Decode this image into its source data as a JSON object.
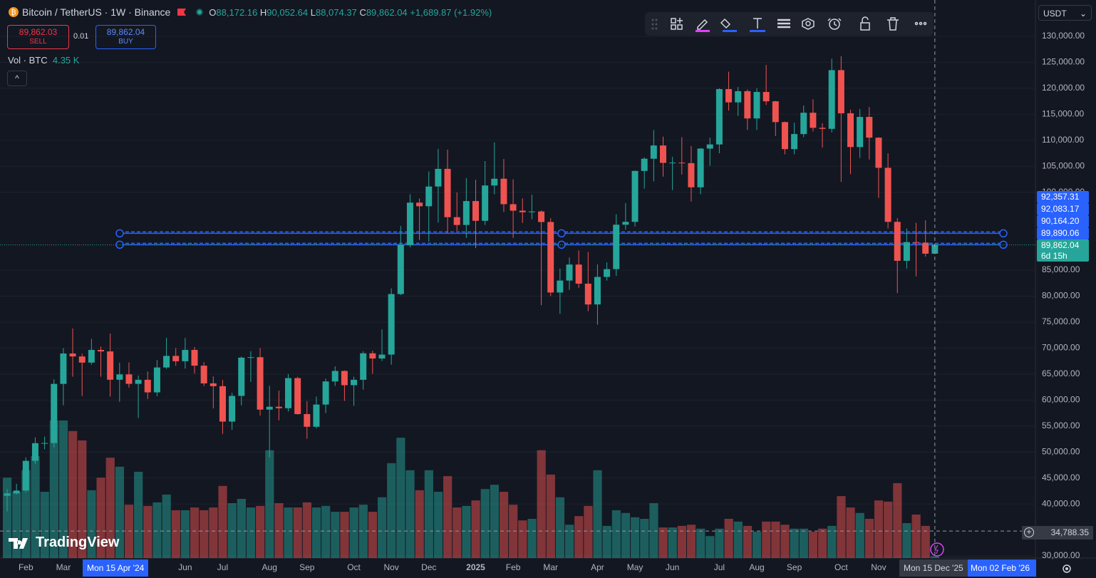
{
  "header": {
    "symbol": "Bitcoin / TetherUS · 1W · Binance",
    "o_label": "O",
    "o": "88,172.16",
    "h_label": "H",
    "h": "90,052.64",
    "l_label": "L",
    "l": "88,074.37",
    "c_label": "C",
    "c": "89,862.04",
    "change": "+1,689.87 (+1.92%)"
  },
  "trade": {
    "sell_price": "89,862.03",
    "sell": "SELL",
    "qty": "0.01",
    "buy_price": "89,862.04",
    "buy": "BUY"
  },
  "volume_legend": {
    "label": "Vol · BTC",
    "value": "4.35 K"
  },
  "currency": "USDT",
  "watermark": "TradingView",
  "chart_data": {
    "type": "candlestick",
    "x": [
      null,
      null,
      "Feb",
      null,
      null,
      null,
      "Mar",
      null,
      null,
      null,
      null,
      null,
      null,
      null,
      null,
      null,
      null,
      null,
      null,
      "Jun",
      null,
      null,
      null,
      "Jul",
      null,
      null,
      null,
      null,
      "Aug",
      null,
      null,
      null,
      "Sep",
      null,
      null,
      null,
      null,
      "Oct",
      null,
      null,
      null,
      "Nov",
      null,
      null,
      null,
      "Dec",
      null,
      null,
      null,
      null,
      "2025",
      null,
      null,
      null,
      "Feb",
      null,
      null,
      null,
      "Mar",
      null,
      null,
      null,
      null,
      "Apr",
      null,
      null,
      null,
      "May",
      null,
      null,
      null,
      "Jun",
      null,
      null,
      null,
      null,
      "Jul",
      null,
      null,
      null,
      "Aug",
      null,
      null,
      null,
      "Sep",
      null,
      null,
      null,
      null,
      "Oct",
      null,
      null,
      null,
      "Nov",
      null,
      null,
      null,
      null,
      null,
      null
    ],
    "open": [
      41580,
      42030,
      42580,
      48300,
      51700,
      51730,
      63110,
      68960,
      68390,
      67210,
      69650,
      69360,
      63910,
      64940,
      63120,
      63900,
      61480,
      66270,
      68500,
      67470,
      69650,
      66620,
      63210,
      62670,
      55850,
      60800,
      68160,
      68250,
      58160,
      58710,
      58430,
      64220,
      57300,
      54860,
      59130,
      63580,
      65600,
      62860,
      63900,
      69000,
      68000,
      68750,
      80400,
      89850,
      98000,
      97300,
      101100,
      104500,
      95200,
      93700,
      98300,
      94500,
      101300,
      102600,
      97700,
      96450,
      96150,
      96300,
      94270,
      80700,
      83000,
      86080,
      82400,
      78400,
      83700,
      85200,
      93750,
      94300,
      104100,
      106450,
      109000,
      105650,
      105700,
      105600,
      100950,
      108400,
      109200,
      119850,
      117300,
      119450,
      114200,
      119300,
      117500,
      113500,
      108300,
      111200,
      115300,
      112400,
      112200,
      123500,
      115200,
      108700,
      114500,
      110500,
      104700,
      94300,
      86800,
      90400,
      90300,
      88172.16
    ],
    "high": [
      42840,
      43880,
      48970,
      52820,
      52985,
      64000,
      70000,
      73780,
      68920,
      71770,
      70300,
      72800,
      67200,
      67240,
      64730,
      65500,
      67700,
      71980,
      70000,
      71950,
      70190,
      67300,
      64550,
      63860,
      61400,
      68380,
      69400,
      70000,
      62750,
      61800,
      65000,
      64480,
      59800,
      60670,
      64130,
      66500,
      65700,
      64500,
      69400,
      69500,
      73600,
      81500,
      93500,
      99600,
      98800,
      104000,
      108350,
      108200,
      99950,
      102700,
      102400,
      106000,
      109600,
      106400,
      102500,
      98800,
      99500,
      96500,
      95000,
      85300,
      87450,
      88800,
      88500,
      86100,
      86500,
      95750,
      97900,
      104150,
      106700,
      111980,
      110700,
      106800,
      110600,
      108900,
      108500,
      110500,
      120000,
      123200,
      120250,
      119800,
      120000,
      124500,
      117600,
      113600,
      113400,
      116700,
      117900,
      113300,
      125700,
      126200,
      115900,
      116000,
      116400,
      110600,
      107500,
      95000,
      93000,
      94100,
      94600,
      90052.64
    ],
    "low": [
      38555,
      41800,
      42260,
      47700,
      50520,
      50900,
      59000,
      64500,
      60770,
      66800,
      64490,
      60660,
      59680,
      62400,
      56550,
      60190,
      60760,
      66000,
      66600,
      66050,
      65100,
      62700,
      58400,
      53480,
      54260,
      59000,
      63500,
      57000,
      49000,
      56100,
      57800,
      57200,
      52550,
      54550,
      57500,
      62700,
      59830,
      58900,
      62000,
      65050,
      67500,
      66800,
      80200,
      89400,
      90800,
      90500,
      94150,
      92200,
      92550,
      91200,
      89250,
      93700,
      99600,
      96200,
      91200,
      94100,
      94800,
      78250,
      80000,
      76600,
      81200,
      81600,
      77100,
      74500,
      83000,
      83900,
      92800,
      93400,
      100700,
      102100,
      103000,
      100400,
      103400,
      98200,
      99600,
      105100,
      107500,
      115700,
      114700,
      112000,
      112000,
      116800,
      110800,
      107300,
      107300,
      110600,
      111700,
      108600,
      111500,
      102000,
      103500,
      106600,
      106300,
      98900,
      93000,
      80600,
      85300,
      83800,
      87600,
      88074.37
    ],
    "close": [
      42030,
      42580,
      48300,
      51700,
      51730,
      63110,
      68960,
      68390,
      67210,
      69650,
      69360,
      63910,
      64940,
      63120,
      63900,
      61480,
      66270,
      68500,
      67470,
      69650,
      66620,
      63210,
      62670,
      55850,
      60800,
      68160,
      68250,
      58160,
      58710,
      58430,
      64220,
      57300,
      54860,
      59130,
      63580,
      65600,
      62860,
      63900,
      69000,
      68000,
      68750,
      80400,
      89850,
      98000,
      97300,
      101100,
      104500,
      95200,
      93700,
      98300,
      94500,
      101300,
      102600,
      97700,
      96450,
      96150,
      96300,
      94270,
      80700,
      83000,
      86080,
      82400,
      78400,
      83700,
      85200,
      93750,
      94300,
      104100,
      106450,
      109000,
      105650,
      105700,
      105600,
      100950,
      108400,
      109200,
      119850,
      117300,
      119450,
      114200,
      119300,
      117500,
      113500,
      108300,
      111200,
      115300,
      112400,
      112200,
      123500,
      115200,
      108700,
      114500,
      110500,
      104700,
      94300,
      86800,
      90400,
      90300,
      88172.16,
      89862.04
    ],
    "volume": [
      205,
      169,
      224,
      260,
      169,
      351,
      351,
      324,
      300,
      173,
      205,
      256,
      233,
      136,
      220,
      133,
      142,
      162,
      122,
      122,
      129,
      122,
      129,
      184,
      140,
      151,
      129,
      133,
      275,
      140,
      129,
      129,
      142,
      129,
      133,
      118,
      118,
      129,
      136,
      118,
      155,
      242,
      307,
      224,
      173,
      224,
      169,
      209,
      129,
      133,
      147,
      176,
      187,
      169,
      136,
      96,
      100,
      275,
      213,
      155,
      85,
      107,
      133,
      224,
      82,
      122,
      115,
      104,
      100,
      140,
      78,
      78,
      82,
      85,
      75,
      56,
      75,
      100,
      93,
      82,
      67,
      93,
      93,
      85,
      75,
      75,
      67,
      75,
      82,
      158,
      129,
      115,
      100,
      147,
      144,
      191,
      89,
      111,
      82,
      4.35
    ],
    "up_color": "#26a69a",
    "down_color": "#ef5350",
    "grid": true,
    "ylim": [
      29590,
      137000
    ],
    "yticks": [
      {
        "value": 130000,
        "label": "130,000.00"
      },
      {
        "value": 125000,
        "label": "125,000.00"
      },
      {
        "value": 120000,
        "label": "120,000.00"
      },
      {
        "value": 115000,
        "label": "115,000.00"
      },
      {
        "value": 110000,
        "label": "110,000.00"
      },
      {
        "value": 105000,
        "label": "105,000.00"
      },
      {
        "value": 100000,
        "label": "100,000.00"
      },
      {
        "value": 85000,
        "label": "85,000.00"
      },
      {
        "value": 80000,
        "label": "80,000.00"
      },
      {
        "value": 75000,
        "label": "75,000.00"
      },
      {
        "value": 70000,
        "label": "70,000.00"
      },
      {
        "value": 65000,
        "label": "65,000.00"
      },
      {
        "value": 60000,
        "label": "60,000.00"
      },
      {
        "value": 55000,
        "label": "55,000.00"
      },
      {
        "value": 50000,
        "label": "50,000.00"
      },
      {
        "value": 45000,
        "label": "45,000.00"
      },
      {
        "value": 40000,
        "label": "40,000.00"
      },
      {
        "value": 30000,
        "label": "30,000.00"
      }
    ],
    "price_labels": [
      {
        "value": 92357.31,
        "label": "92,357.31"
      },
      {
        "value": 92083.17,
        "label": "92,083.17"
      },
      {
        "value": 90164.2,
        "label": "90,164.20"
      },
      {
        "value": 89890.06,
        "label": "89,890.06"
      }
    ],
    "last_price": {
      "value": 89862.04,
      "label": "89,862.04",
      "countdown": "6d 15h"
    },
    "crosshair": {
      "value": 34788.35,
      "label": "34,788.35"
    },
    "time_labels": [
      "Mon 15 Apr '24",
      "Mon 15 Dec '25",
      "Mon 02 Feb '26"
    ]
  }
}
